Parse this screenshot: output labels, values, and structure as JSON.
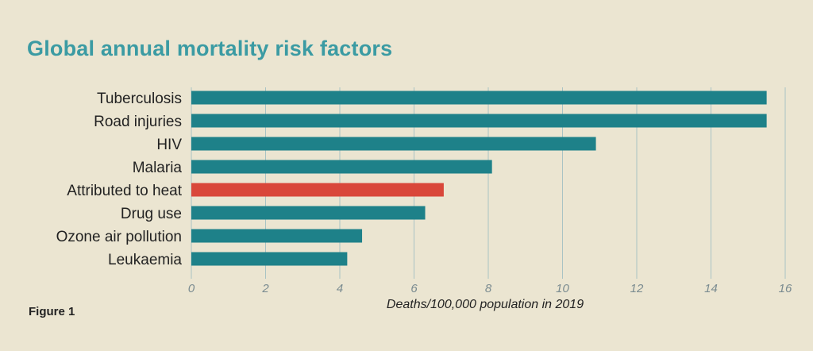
{
  "chart_data": {
    "type": "bar",
    "orientation": "horizontal",
    "title": "Global annual mortality risk factors",
    "categories": [
      "Tuberculosis",
      "Road injuries",
      "HIV",
      "Malaria",
      "Attributed to heat",
      "Drug use",
      "Ozone air pollution",
      "Leukaemia"
    ],
    "values": [
      15.5,
      15.5,
      10.9,
      8.1,
      6.8,
      6.3,
      4.6,
      4.2
    ],
    "highlight_category": "Attributed to heat",
    "colors": {
      "default": "#1e8189",
      "highlight": "#d9473a",
      "grid": "#a9c3c4"
    },
    "xlabel": "Deaths/100,000 population in 2019",
    "ylabel": "",
    "xlim": [
      0,
      16
    ],
    "xticks": [
      0,
      2,
      4,
      6,
      8,
      10,
      12,
      14,
      16
    ],
    "grid": true
  },
  "caption": "Figure 1"
}
